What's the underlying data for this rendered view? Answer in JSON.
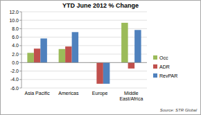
{
  "chart_data": {
    "type": "bar",
    "title": "YTD June 2012 % Change",
    "categories": [
      "Asia Pacific",
      "Americas",
      "Europe",
      "Middle East/Africa"
    ],
    "series": [
      {
        "name": "Occ",
        "color": "#9bbb59",
        "values": [
          2.3,
          3.2,
          -0.1,
          9.4
        ]
      },
      {
        "name": "ADR",
        "color": "#c0504d",
        "values": [
          3.3,
          3.8,
          -5.0,
          -1.4
        ]
      },
      {
        "name": "RevPAR",
        "color": "#4f81bd",
        "values": [
          5.7,
          7.2,
          -5.0,
          7.7
        ]
      }
    ],
    "ylim": [
      -6,
      12
    ],
    "yticks": [
      {
        "value": -6,
        "label": "-6.0"
      },
      {
        "value": -4,
        "label": "-4.0"
      },
      {
        "value": -2,
        "label": "-2.0"
      },
      {
        "value": 0,
        "label": "0.0"
      },
      {
        "value": 2,
        "label": "2.0"
      },
      {
        "value": 4,
        "label": "4.0"
      },
      {
        "value": 6,
        "label": "6.0"
      },
      {
        "value": 8,
        "label": "8.0"
      },
      {
        "value": 10,
        "label": "10.0"
      },
      {
        "value": 12,
        "label": "12.0"
      }
    ],
    "grid": true,
    "legend": "right",
    "annotations": [
      "Source: STR Global"
    ]
  }
}
